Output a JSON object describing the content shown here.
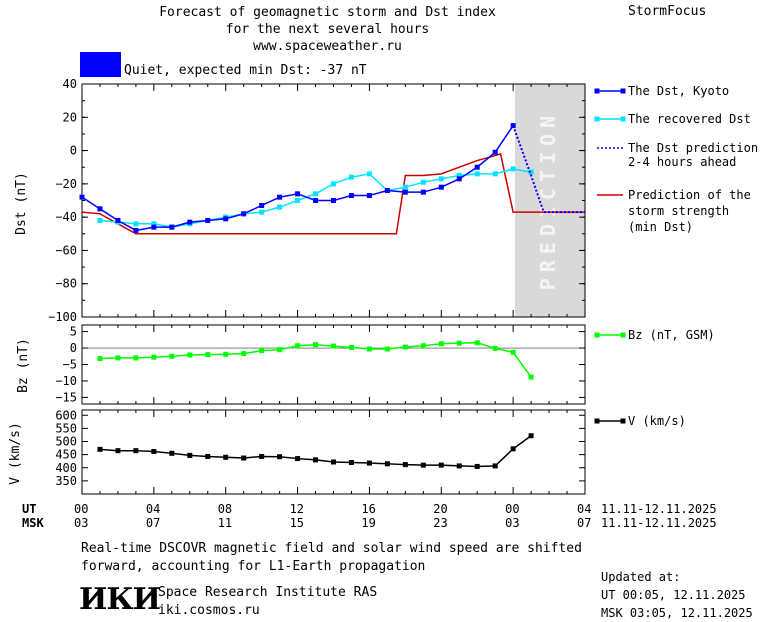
{
  "header": {
    "title_line1": "Forecast of geomagnetic storm and Dst index",
    "title_line2": "for the next several hours",
    "website": "www.spaceweather.ru",
    "brand": "StormFocus",
    "status_text": "Quiet, expected min Dst: -37 nT",
    "status_color": "#0000ff"
  },
  "prediction_label": "PREDICTION",
  "legend": {
    "dst_kyoto": "The Dst, Kyoto",
    "recovered": "The recovered Dst",
    "prediction_line1": "The Dst prediction",
    "prediction_line2": "2-4 hours ahead",
    "storm_line1": "Prediction of the",
    "storm_line2": "storm strength",
    "storm_line3": "(min Dst)",
    "bz": "Bz (nT, GSM)",
    "v": "V (km/s)"
  },
  "time_axis": {
    "ut_label": "UT",
    "msk_label": "MSK",
    "ut_ticks": [
      "00",
      "04",
      "08",
      "12",
      "16",
      "20",
      "00",
      "04"
    ],
    "msk_ticks": [
      "03",
      "07",
      "11",
      "15",
      "19",
      "23",
      "03",
      "07"
    ],
    "date_range": "11.11-12.11.2025"
  },
  "footer": {
    "note_line1": "Real-time DSCOVR magnetic field and solar wind speed are shifted",
    "note_line2": "forward, accounting for L1-Earth propagation",
    "institute": "Space Research Institute RAS",
    "institute_url": "iki.cosmos.ru",
    "logo_text": "ИКИ",
    "updated_label": "Updated at:",
    "updated_ut": "UT  00:05, 12.11.2025",
    "updated_msk": "MSK 03:05, 12.11.2025"
  },
  "chart_data": [
    {
      "type": "line",
      "ylabel": "Dst (nT)",
      "ylim": [
        -100,
        40
      ],
      "yticks": [
        40,
        20,
        0,
        -20,
        -40,
        -60,
        -80,
        -100
      ],
      "xlim_hours": [
        0,
        28
      ],
      "prediction_start_hour": 24,
      "prediction_end_hour": 28,
      "series": [
        {
          "name": "The Dst, Kyoto",
          "color": "#0000ff",
          "x": [
            0,
            1,
            2,
            3,
            4,
            5,
            6,
            7,
            8,
            9,
            10,
            11,
            12,
            13,
            14,
            15,
            16,
            17,
            18,
            19,
            20,
            21,
            22,
            23,
            24
          ],
          "values": [
            -28,
            -35,
            -42,
            -48,
            -46,
            -46,
            -43,
            -42,
            -41,
            -38,
            -33,
            -28,
            -26,
            -30,
            -30,
            -27,
            -27,
            -24,
            -25,
            -25,
            -22,
            -17,
            -10,
            -1,
            15
          ]
        },
        {
          "name": "The recovered Dst",
          "color": "#00e5ff",
          "x": [
            1,
            2,
            3,
            4,
            5,
            6,
            7,
            8,
            9,
            10,
            11,
            12,
            13,
            14,
            15,
            16,
            17,
            18,
            19,
            20,
            21,
            22,
            23,
            24,
            25
          ],
          "values": [
            -42,
            -43,
            -44,
            -44,
            -46,
            -44,
            -42,
            -40,
            -38,
            -37,
            -34,
            -30,
            -26,
            -20,
            -16,
            -14,
            -24,
            -22,
            -19,
            -17,
            -15,
            -14,
            -14,
            -11,
            -13
          ]
        },
        {
          "name": "The Dst prediction 2-4 hours ahead",
          "color": "#0000ff",
          "x": [
            24,
            25,
            25.7,
            28
          ],
          "values": [
            15,
            -15,
            -37,
            -37
          ]
        },
        {
          "name": "Prediction of the storm strength (min Dst)",
          "color": "#cc0000",
          "x": [
            0,
            1,
            3,
            17.5,
            18,
            19,
            20,
            21,
            22,
            23,
            23.3,
            24,
            28
          ],
          "values": [
            -37,
            -38,
            -50,
            -50,
            -15,
            -15,
            -14,
            -10,
            -6,
            -3,
            -2,
            -37,
            -37
          ]
        }
      ]
    },
    {
      "type": "line",
      "ylabel": "Bz (nT)",
      "ylim": [
        -17,
        7
      ],
      "yticks": [
        5,
        0,
        -5,
        -10,
        -15
      ],
      "series": [
        {
          "name": "Bz (nT, GSM)",
          "color": "#00ff00",
          "x": [
            1,
            2,
            3,
            4,
            5,
            6,
            7,
            8,
            9,
            10,
            11,
            12,
            13,
            14,
            15,
            16,
            17,
            18,
            19,
            20,
            21,
            22,
            23,
            24,
            25
          ],
          "values": [
            -3.2,
            -3.0,
            -3.0,
            -2.8,
            -2.5,
            -2.1,
            -2.0,
            -1.9,
            -1.7,
            -0.8,
            -0.5,
            0.7,
            1.0,
            0.6,
            0.2,
            -0.3,
            -0.3,
            0.3,
            0.7,
            1.3,
            1.5,
            1.6,
            -0.1,
            -1.3,
            -8.8
          ]
        }
      ]
    },
    {
      "type": "line",
      "ylabel": "V (km/s)",
      "ylim": [
        300,
        620
      ],
      "yticks": [
        600,
        550,
        500,
        450,
        400,
        350
      ],
      "series": [
        {
          "name": "V (km/s)",
          "color": "#000000",
          "x": [
            1,
            2,
            3,
            4,
            5,
            6,
            7,
            8,
            9,
            10,
            11,
            12,
            13,
            14,
            15,
            16,
            17,
            18,
            19,
            20,
            21,
            22,
            23,
            24,
            25
          ],
          "values": [
            470,
            465,
            465,
            462,
            455,
            447,
            443,
            440,
            437,
            443,
            442,
            435,
            430,
            422,
            420,
            418,
            415,
            412,
            410,
            410,
            407,
            405,
            407,
            472,
            522
          ]
        }
      ]
    }
  ]
}
